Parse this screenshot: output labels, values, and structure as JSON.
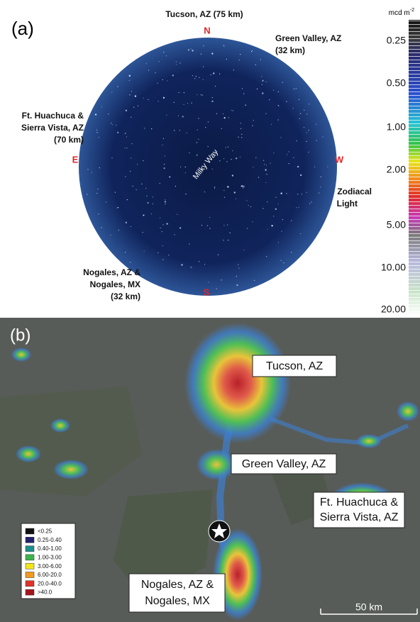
{
  "panel_a": {
    "label": "(a)",
    "directions": {
      "north": "N",
      "south": "S",
      "east": "E",
      "west": "W"
    },
    "milky_way": "Milky Way",
    "sites": [
      {
        "lines": [
          "Tucson, AZ (75 km)"
        ]
      },
      {
        "lines": [
          "Green Valley, AZ",
          "(32 km)"
        ]
      },
      {
        "lines": [
          "Ft. Huachuca &",
          "Sierra Vista, AZ",
          "(70 km)"
        ]
      },
      {
        "lines": [
          "Zodiacal",
          "Light"
        ]
      },
      {
        "lines": [
          "Nogales, AZ &",
          "Nogales, MX",
          "(32 km)"
        ]
      }
    ],
    "colorbar": {
      "unit": "mcd m",
      "unit_exponent": "-2",
      "ticks": [
        "0.25",
        "0.50",
        "1.00",
        "2.00",
        "5.00",
        "10.00",
        "20.00"
      ]
    }
  },
  "panel_b": {
    "label": "(b)",
    "cities": [
      {
        "lines": [
          "Tucson, AZ"
        ]
      },
      {
        "lines": [
          "Green Valley, AZ"
        ]
      },
      {
        "lines": [
          "Ft. Huachuca &",
          "Sierra Vista, AZ"
        ]
      },
      {
        "lines": [
          "Nogales, AZ &",
          "Nogales, MX"
        ]
      }
    ],
    "legend": [
      {
        "label": "<0.25",
        "color": "#111111"
      },
      {
        "label": "0.25-0.40",
        "color": "#22226e"
      },
      {
        "label": "0.40-1.00",
        "color": "#1a8f8f"
      },
      {
        "label": "1.00-3.00",
        "color": "#3cb44b"
      },
      {
        "label": "3.00-6.00",
        "color": "#f2e61b"
      },
      {
        "label": "6.00-20.0",
        "color": "#f39a1e"
      },
      {
        "label": "20.0-40.0",
        "color": "#e0322a"
      },
      {
        "label": ">40.0",
        "color": "#a4161c"
      }
    ],
    "scale_bar": "50 km"
  }
}
